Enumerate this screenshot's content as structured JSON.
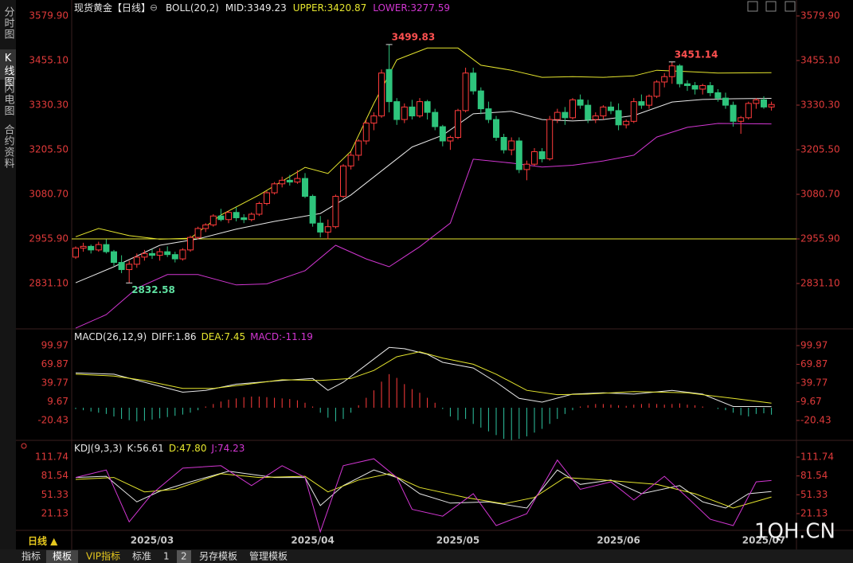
{
  "chart_data": [
    {
      "type": "candlestick",
      "title": "现货黄金【日线】",
      "indicator": "BOLL(20,2)",
      "categories": [
        null,
        null,
        null,
        null,
        null,
        null,
        null,
        null,
        null,
        null,
        "2025/03",
        null,
        null,
        null,
        null,
        null,
        null,
        null,
        null,
        null,
        null,
        null,
        null,
        null,
        null,
        null,
        null,
        null,
        null,
        null,
        null,
        "2025/04",
        null,
        null,
        null,
        null,
        null,
        null,
        null,
        null,
        null,
        null,
        null,
        null,
        null,
        null,
        null,
        null,
        null,
        null,
        "2025/05",
        null,
        null,
        null,
        null,
        null,
        null,
        null,
        null,
        null,
        null,
        null,
        null,
        null,
        null,
        null,
        null,
        null,
        null,
        null,
        null,
        "2025/06",
        null,
        null,
        null,
        null,
        null,
        null,
        null,
        null,
        null,
        null,
        null,
        null,
        null,
        null,
        null,
        null,
        null,
        null,
        "2025/07"
      ],
      "ohlc": [
        [
          2905,
          2935,
          2900,
          2930
        ],
        [
          2930,
          2945,
          2920,
          2935
        ],
        [
          2935,
          2940,
          2915,
          2925
        ],
        [
          2925,
          2948,
          2920,
          2940
        ],
        [
          2940,
          2955,
          2915,
          2920
        ],
        [
          2920,
          2925,
          2880,
          2890
        ],
        [
          2890,
          2910,
          2860,
          2870
        ],
        [
          2870,
          2895,
          2832.58,
          2885
        ],
        [
          2885,
          2915,
          2875,
          2905
        ],
        [
          2905,
          2925,
          2895,
          2915
        ],
        [
          2915,
          2928,
          2900,
          2910
        ],
        [
          2910,
          2930,
          2895,
          2920
        ],
        [
          2920,
          2935,
          2905,
          2912
        ],
        [
          2912,
          2920,
          2890,
          2900
        ],
        [
          2900,
          2930,
          2895,
          2925
        ],
        [
          2925,
          2965,
          2920,
          2960
        ],
        [
          2960,
          2990,
          2955,
          2985
        ],
        [
          2985,
          3000,
          2975,
          2995
        ],
        [
          2995,
          3025,
          2990,
          3020
        ],
        [
          3020,
          3040,
          3005,
          3010
        ],
        [
          3010,
          3035,
          3000,
          3030
        ],
        [
          3030,
          3045,
          3005,
          3015
        ],
        [
          3015,
          3025,
          3000,
          3010
        ],
        [
          3010,
          3030,
          3005,
          3025
        ],
        [
          3025,
          3060,
          3020,
          3055
        ],
        [
          3055,
          3090,
          3050,
          3085
        ],
        [
          3085,
          3115,
          3080,
          3110
        ],
        [
          3110,
          3130,
          3100,
          3120
        ],
        [
          3120,
          3135,
          3105,
          3115
        ],
        [
          3115,
          3148,
          3110,
          3125
        ],
        [
          3125,
          3140,
          3070,
          3075
        ],
        [
          3075,
          3080,
          2990,
          3000
        ],
        [
          3000,
          3020,
          2960,
          2975
        ],
        [
          2975,
          3010,
          2955,
          2990
        ],
        [
          2990,
          3080,
          2985,
          3075
        ],
        [
          3075,
          3165,
          3070,
          3160
        ],
        [
          3160,
          3200,
          3150,
          3190
        ],
        [
          3190,
          3235,
          3175,
          3230
        ],
        [
          3230,
          3290,
          3220,
          3280
        ],
        [
          3280,
          3310,
          3260,
          3300
        ],
        [
          3300,
          3430,
          3295,
          3420
        ],
        [
          3430,
          3499.83,
          3310,
          3340
        ],
        [
          3340,
          3350,
          3275,
          3290
        ],
        [
          3290,
          3335,
          3280,
          3325
        ],
        [
          3325,
          3345,
          3290,
          3300
        ],
        [
          3300,
          3350,
          3295,
          3340
        ],
        [
          3340,
          3345,
          3290,
          3310
        ],
        [
          3310,
          3320,
          3260,
          3270
        ],
        [
          3270,
          3275,
          3215,
          3230
        ],
        [
          3230,
          3245,
          3205,
          3240
        ],
        [
          3240,
          3320,
          3235,
          3315
        ],
        [
          3315,
          3435,
          3310,
          3420
        ],
        [
          3420,
          3435,
          3360,
          3370
        ],
        [
          3370,
          3380,
          3305,
          3320
        ],
        [
          3320,
          3340,
          3280,
          3290
        ],
        [
          3290,
          3300,
          3230,
          3240
        ],
        [
          3240,
          3250,
          3195,
          3205
        ],
        [
          3205,
          3240,
          3190,
          3230
        ],
        [
          3230,
          3240,
          3140,
          3150
        ],
        [
          3150,
          3175,
          3120,
          3165
        ],
        [
          3165,
          3210,
          3160,
          3200
        ],
        [
          3200,
          3210,
          3170,
          3180
        ],
        [
          3180,
          3300,
          3175,
          3290
        ],
        [
          3290,
          3320,
          3280,
          3310
        ],
        [
          3310,
          3325,
          3275,
          3295
        ],
        [
          3295,
          3350,
          3290,
          3345
        ],
        [
          3345,
          3360,
          3320,
          3330
        ],
        [
          3330,
          3345,
          3280,
          3290
        ],
        [
          3290,
          3310,
          3280,
          3300
        ],
        [
          3300,
          3330,
          3290,
          3325
        ],
        [
          3325,
          3340,
          3305,
          3315
        ],
        [
          3315,
          3335,
          3260,
          3275
        ],
        [
          3275,
          3290,
          3265,
          3285
        ],
        [
          3285,
          3350,
          3280,
          3340
        ],
        [
          3340,
          3360,
          3320,
          3330
        ],
        [
          3330,
          3360,
          3320,
          3355
        ],
        [
          3355,
          3400,
          3350,
          3395
        ],
        [
          3395,
          3420,
          3380,
          3410
        ],
        [
          3410,
          3451.14,
          3390,
          3440
        ],
        [
          3440,
          3445,
          3380,
          3390
        ],
        [
          3390,
          3400,
          3370,
          3385
        ],
        [
          3385,
          3395,
          3360,
          3375
        ],
        [
          3375,
          3390,
          3360,
          3385
        ],
        [
          3385,
          3395,
          3355,
          3365
        ],
        [
          3365,
          3375,
          3340,
          3350
        ],
        [
          3350,
          3365,
          3320,
          3330
        ],
        [
          3330,
          3340,
          3270,
          3285
        ],
        [
          3285,
          3300,
          3250,
          3295
        ],
        [
          3295,
          3340,
          3290,
          3335
        ],
        [
          3335,
          3350,
          3320,
          3345
        ],
        [
          3345,
          3355,
          3320,
          3325
        ],
        [
          3325,
          3340,
          3315,
          3332
        ]
      ],
      "up_color": "#ff3b3b",
      "down_color": "#2ec47c",
      "series": [
        {
          "name": "MID:3349.23",
          "color": "#e8e8e8",
          "x": [
            0,
            5,
            11,
            16,
            21,
            26,
            32,
            36,
            40,
            44,
            48,
            52,
            57,
            61,
            65,
            69,
            73,
            78,
            82,
            86,
            91
          ],
          "values": [
            2833,
            2878,
            2938,
            2956,
            2983,
            3005,
            3027,
            3079,
            3146,
            3213,
            3246,
            3306,
            3313,
            3290,
            3286,
            3290,
            3301,
            3339,
            3346,
            3348,
            3349.23
          ]
        },
        {
          "name": "UPPER:3420.87",
          "color": "#e6e62e",
          "x": [
            0,
            3,
            7,
            11,
            15,
            19,
            24,
            30,
            33,
            36,
            39,
            42,
            46,
            50,
            53,
            57,
            61,
            65,
            69,
            73,
            76,
            80,
            84,
            91
          ],
          "values": [
            2962,
            2985,
            2965,
            2955,
            2958,
            3023,
            3079,
            3156,
            3139,
            3201,
            3335,
            3457,
            3490,
            3490,
            3442,
            3428,
            3408,
            3410,
            3408,
            3412,
            3428,
            3424,
            3420,
            3420.87
          ]
        },
        {
          "name": "LOWER:3277.59",
          "color": "#d236d2",
          "x": [
            0,
            4,
            8,
            12,
            16,
            21,
            25,
            30,
            34,
            38,
            41,
            45,
            49,
            52,
            57,
            61,
            65,
            69,
            73,
            76,
            80,
            84,
            91
          ],
          "values": [
            2706,
            2744,
            2818,
            2856,
            2856,
            2827,
            2830,
            2867,
            2938,
            2900,
            2878,
            2934,
            3000,
            3179,
            3168,
            3157,
            3162,
            3174,
            3190,
            3241,
            3268,
            3279,
            3277.59
          ]
        }
      ],
      "reference_line": {
        "value": 2955.9,
        "color": "#e6e62e"
      },
      "ylim": [
        2706.3,
        3613.3
      ],
      "yticks": [
        {
          "value": 3579.9,
          "label": "3579.90"
        },
        {
          "value": 3455.1,
          "label": "3455.10"
        },
        {
          "value": 3330.3,
          "label": "3330.30"
        },
        {
          "value": 3205.5,
          "label": "3205.50"
        },
        {
          "value": 3080.7,
          "label": "3080.70"
        },
        {
          "value": 2955.9,
          "label": "2955.90"
        },
        {
          "value": 2831.1,
          "label": "2831.10"
        }
      ]
    },
    {
      "type": "macd",
      "indicator": "MACD(26,12,9)",
      "readout": "MACD:-11.19",
      "histogram": [
        -2,
        -4,
        -6,
        -8,
        -10,
        -14,
        -18,
        -20,
        -22,
        -21,
        -19,
        -17,
        -15,
        -13,
        -11,
        -8,
        -4,
        2,
        6,
        10,
        13,
        15,
        17,
        18,
        18,
        17,
        16,
        15,
        14,
        12,
        8,
        2,
        -8,
        -16,
        -22,
        -18,
        -8,
        4,
        16,
        28,
        42,
        54,
        48,
        38,
        30,
        24,
        16,
        8,
        -2,
        -14,
        -20,
        -18,
        -26,
        -32,
        -38,
        -44,
        -50,
        -52,
        -50,
        -46,
        -40,
        -34,
        -26,
        -18,
        -10,
        -4,
        2,
        4,
        6,
        6,
        5,
        4,
        3,
        5,
        6,
        7,
        6,
        5,
        6,
        7,
        5,
        4,
        2,
        0,
        -2,
        -4,
        -8,
        -12,
        -14,
        -10,
        -9,
        -11.19
      ],
      "up_color": "#ff3b3b",
      "down_color": "#2ec4a0",
      "series": [
        {
          "name": "DIFF:1.86",
          "color": "#e8e8e8",
          "x": [
            0,
            5,
            9,
            14,
            17,
            21,
            27,
            31,
            33,
            35,
            38,
            41,
            43,
            46,
            48,
            52,
            55,
            58,
            61,
            65,
            69,
            73,
            78,
            82,
            86,
            89,
            91
          ],
          "values": [
            56,
            54,
            41,
            25,
            28,
            38,
            44,
            47,
            28,
            41,
            69,
            97,
            95,
            86,
            73,
            64,
            41,
            15,
            9,
            22,
            24,
            22,
            28,
            22,
            2,
            2,
            1.86
          ]
        },
        {
          "name": "DEA:7.45",
          "color": "#e6e62e",
          "x": [
            0,
            5,
            9,
            14,
            18,
            22,
            27,
            32,
            36,
            39,
            42,
            45,
            48,
            52,
            55,
            59,
            63,
            67,
            73,
            80,
            86,
            91
          ],
          "values": [
            54,
            51,
            44,
            31,
            31,
            37,
            45,
            44,
            47,
            60,
            82,
            90,
            80,
            70,
            54,
            28,
            21,
            22,
            26,
            24,
            15,
            7.45
          ]
        }
      ],
      "readout_color": "#d236d2",
      "ylim": [
        -51.2,
        123.0
      ],
      "yticks": [
        99.97,
        69.87,
        39.77,
        9.67,
        -20.43
      ]
    },
    {
      "type": "kdj",
      "indicator": "KDJ(9,3,3)",
      "series": [
        {
          "name": "K:56.61",
          "color": "#e8e8e8",
          "x": [
            0,
            4,
            8,
            11,
            15,
            20,
            26,
            30,
            32,
            35,
            39,
            42,
            45,
            49,
            54,
            59,
            63,
            66,
            70,
            74,
            79,
            82,
            85,
            88,
            91
          ],
          "values": [
            79,
            81,
            40,
            57,
            72,
            89,
            79,
            79,
            34,
            66,
            91,
            79,
            53,
            38,
            40,
            30,
            91,
            68,
            75,
            53,
            66,
            40,
            30,
            53,
            56.61
          ]
        },
        {
          "name": "D:47.80",
          "color": "#e6e62e",
          "x": [
            0,
            5,
            9,
            13,
            19,
            24,
            30,
            33,
            37,
            41,
            45,
            51,
            56,
            60,
            64,
            69,
            76,
            81,
            86,
            91
          ],
          "values": [
            76,
            79,
            56,
            60,
            85,
            79,
            81,
            56,
            75,
            85,
            63,
            47,
            37,
            47,
            79,
            75,
            68,
            53,
            30,
            47.8
          ]
        },
        {
          "name": "J:74.23",
          "color": "#d236d2",
          "x": [
            0,
            4,
            7,
            10,
            14,
            19,
            23,
            27,
            30,
            32,
            35,
            39,
            42,
            44,
            48,
            52,
            55,
            59,
            63,
            66,
            70,
            73,
            77,
            80,
            83,
            86,
            89,
            91
          ],
          "values": [
            79,
            91,
            8,
            53,
            94,
            98,
            66,
            98,
            79,
            -8,
            98,
            109,
            79,
            28,
            17,
            53,
            2,
            21,
            107,
            60,
            72,
            43,
            81,
            47,
            12,
            2,
            72,
            74.23
          ]
        }
      ],
      "ylim": [
        -4.4,
        134.7
      ],
      "yticks": [
        111.74,
        81.54,
        51.33,
        21.13
      ]
    }
  ],
  "ui": {
    "side_tabs": [
      "分时图",
      "K线图",
      "闪电图",
      "合约资料"
    ],
    "period": "日线 ▲",
    "bottom_tabs": [
      "指标",
      "模板",
      "VIP指标",
      "标准",
      "1",
      "2",
      "另存模板",
      "管理模板"
    ],
    "watermark": "1QH.CN"
  }
}
